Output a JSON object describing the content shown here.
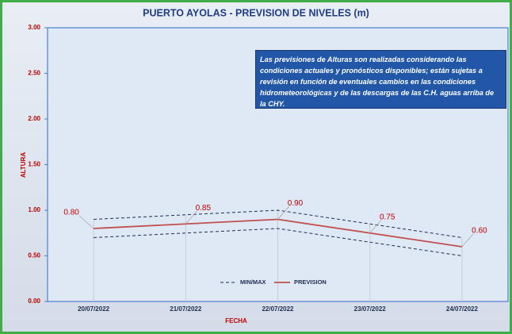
{
  "chart_data": {
    "type": "line",
    "title": "PUERTO AYOLAS - PREVISION DE NIVELES (m)",
    "y_label": "ALTURA",
    "x_label": "FECHA",
    "note": "Las previsiones de Alturas son realizadas considerando las condiciones actuales y pronósticos disponibles;  están sujetas a revisión en función de eventuales cambios en las condiciones hidrometeorológicas y de las descargas de las C.H. aguas arriba de la CHY.",
    "categories": [
      "20/07/2022",
      "21/07/2022",
      "22/07/2022",
      "23/07/2022",
      "24/07/2022"
    ],
    "series": [
      {
        "name": "MIN/MAX",
        "color": "#1f2d50",
        "dashed": true,
        "high": [
          0.9,
          0.95,
          1.0,
          0.85,
          0.7
        ],
        "low": [
          0.7,
          0.75,
          0.8,
          0.65,
          0.5
        ]
      },
      {
        "name": "PREVISION",
        "color": "#c0504d",
        "dashed": false,
        "values": [
          0.8,
          0.85,
          0.9,
          0.75,
          0.6
        ],
        "value_labels": [
          "0.80",
          "0.85",
          "0.90",
          "0.75",
          "0.60"
        ]
      }
    ],
    "ylim": [
      0,
      3
    ],
    "yticks": [
      {
        "value": 0,
        "label": "0.00"
      },
      {
        "value": 0.5,
        "label": "0.50"
      },
      {
        "value": 1,
        "label": "1.00"
      },
      {
        "value": 1.5,
        "label": "1.50"
      },
      {
        "value": 2,
        "label": "2.00"
      },
      {
        "value": 2.5,
        "label": "2.50"
      },
      {
        "value": 3,
        "label": "3.00"
      }
    ]
  }
}
